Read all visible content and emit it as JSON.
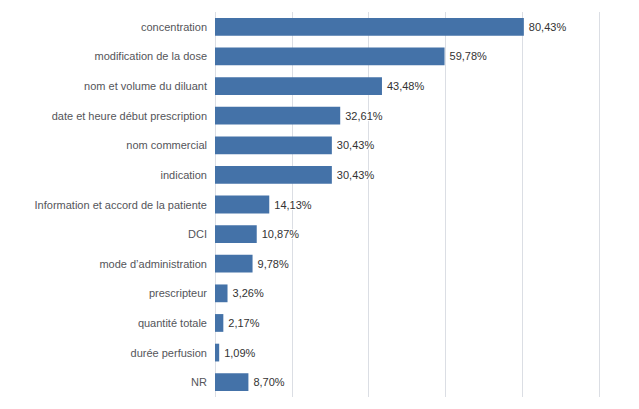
{
  "chart_data": {
    "type": "bar",
    "orientation": "horizontal",
    "categories": [
      "NR",
      "durée perfusion",
      "quantité totale",
      "prescripteur",
      "mode d’administration",
      "DCI",
      "Information et accord de la patiente",
      "indication",
      "nom commercial",
      "date et heure début prescription",
      "nom et volume du diluant",
      "modification de la dose",
      "concentration"
    ],
    "values": [
      8.7,
      1.09,
      2.17,
      3.26,
      9.78,
      10.87,
      14.13,
      30.43,
      30.43,
      32.61,
      43.48,
      59.78,
      80.43
    ],
    "value_labels": [
      "8,70%",
      "1,09%",
      "2,17%",
      "3,26%",
      "9,78%",
      "10,87%",
      "14,13%",
      "30,43%",
      "30,43%",
      "32,61%",
      "43,48%",
      "59,78%",
      "80,43%"
    ],
    "data_labels": true,
    "color": "#4472a8",
    "xlim": [
      0,
      100
    ],
    "xticks": [
      0,
      20,
      40,
      60,
      80,
      100
    ],
    "grid": true,
    "tick_labels": "y"
  }
}
